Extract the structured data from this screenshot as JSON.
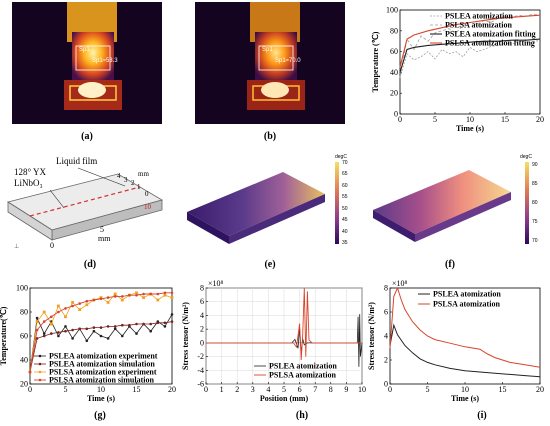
{
  "captions": {
    "a": "(a)",
    "b": "(b)",
    "c": "(c)",
    "d": "(d)",
    "e": "(e)",
    "f": "(f)",
    "g": "(g)",
    "h": "(h)",
    "i": "(i)"
  },
  "thermal": {
    "a": {
      "label": "Sp1",
      "value": "Sp1≈53.3"
    },
    "b": {
      "label": "Sp1",
      "value": "Sp1≈70.0"
    }
  },
  "colors": {
    "black": "#222222",
    "red": "#d9452b",
    "orange": "#f0a020",
    "darkred": "#7a1e1e",
    "gray": "#9e9e9e"
  },
  "chart_c": {
    "type": "line",
    "ylabel": "Temperature (℃)",
    "xlabel": "Time (s)",
    "xlim": [
      0,
      20
    ],
    "ylim": [
      0,
      100
    ],
    "xticks": [
      "0",
      "5",
      "10",
      "15",
      "20"
    ],
    "yticks": [
      "0",
      "20",
      "40",
      "60",
      "80",
      "100"
    ],
    "legend": [
      "PSLEA  atomization",
      "PSLSA atomization",
      "PSLEA atomization fitting",
      "PSLSA atomization fitting"
    ],
    "series": [
      {
        "name": "PSLEA  atomization",
        "x": [
          0,
          1,
          2,
          3,
          4,
          5,
          6,
          7,
          8,
          9,
          10,
          11,
          12,
          13,
          14,
          15,
          16,
          17,
          18,
          19,
          20
        ],
        "y": [
          35,
          58,
          52,
          55,
          60,
          53,
          62,
          58,
          60,
          55,
          64,
          60,
          62,
          65,
          66,
          68,
          67,
          70,
          69,
          68,
          72
        ]
      },
      {
        "name": "PSLSA atomization",
        "x": [
          0,
          1,
          2,
          3,
          4,
          5,
          6,
          7,
          8,
          9,
          10,
          11,
          12,
          13,
          14,
          15,
          16,
          17,
          18,
          19,
          20
        ],
        "y": [
          35,
          72,
          62,
          75,
          70,
          78,
          80,
          82,
          78,
          85,
          88,
          86,
          90,
          88,
          92,
          94,
          93,
          95,
          94,
          96,
          95
        ]
      },
      {
        "name": "PSLEA atomization fitting",
        "x": [
          0,
          1,
          2,
          4,
          6,
          8,
          10,
          12,
          14,
          16,
          18,
          20
        ],
        "y": [
          40,
          62,
          64,
          66,
          67,
          68,
          69,
          70,
          70,
          71,
          71,
          72
        ]
      },
      {
        "name": "PSLSA atomization fitting",
        "x": [
          0,
          1,
          2,
          4,
          6,
          8,
          10,
          12,
          14,
          16,
          18,
          20
        ],
        "y": [
          45,
          72,
          76,
          80,
          83,
          86,
          88,
          90,
          92,
          93,
          94,
          95
        ]
      }
    ]
  },
  "model_d": {
    "substrate": "128° YX",
    "substrate2": "LiNbO₃",
    "film": "Liquid film",
    "dims": [
      "4",
      "3",
      "2",
      "1",
      "0"
    ],
    "mm": "mm",
    "ten": "10",
    "five": "5",
    "five_mm": "mm",
    "zero": "0"
  },
  "colorbar_e": {
    "unit": "degC",
    "ticks": [
      "70",
      "65",
      "60",
      "55",
      "50",
      "45",
      "40",
      "35"
    ]
  },
  "colorbar_f": {
    "unit": "degC",
    "ticks": [
      "90",
      "85",
      "80",
      "75",
      "70"
    ]
  },
  "chart_g": {
    "type": "line",
    "ylabel": "Temperature(℃)",
    "xlabel": "Time (s)",
    "xlim": [
      0,
      20
    ],
    "ylim": [
      20,
      100
    ],
    "xticks": [
      "0",
      "5",
      "10",
      "15",
      "20"
    ],
    "yticks": [
      "20",
      "40",
      "60",
      "80",
      "100"
    ],
    "legend": [
      "PSLEA atomization experiment",
      "PSLEA atomization simulation",
      "PSLSA atomization experiment",
      "PSLSA atomization simulation"
    ],
    "series": [
      {
        "name": "PSLEA atomization experiment",
        "x": [
          0,
          1,
          2,
          3,
          4,
          5,
          6,
          7,
          8,
          9,
          10,
          11,
          12,
          13,
          14,
          15,
          16,
          17,
          18,
          19,
          20
        ],
        "y": [
          30,
          75,
          62,
          72,
          60,
          68,
          58,
          66,
          56,
          64,
          60,
          58,
          66,
          60,
          68,
          62,
          70,
          64,
          72,
          68,
          78
        ]
      },
      {
        "name": "PSLEA atomization simulation",
        "x": [
          0,
          1,
          2,
          3,
          4,
          5,
          6,
          7,
          8,
          9,
          10,
          11,
          12,
          13,
          14,
          15,
          16,
          17,
          18,
          19,
          20
        ],
        "y": [
          30,
          58,
          60,
          62,
          63,
          64,
          65,
          66,
          66,
          67,
          67,
          68,
          68,
          69,
          69,
          70,
          70,
          70,
          71,
          71,
          72
        ]
      },
      {
        "name": "PSLSA atomization experiment",
        "x": [
          0,
          1,
          2,
          3,
          4,
          5,
          6,
          7,
          8,
          9,
          10,
          11,
          12,
          13,
          14,
          15,
          16,
          17,
          18,
          19,
          20
        ],
        "y": [
          30,
          72,
          80,
          70,
          85,
          76,
          88,
          82,
          86,
          90,
          92,
          88,
          95,
          90,
          94,
          96,
          92,
          95,
          90,
          94,
          92
        ]
      },
      {
        "name": "PSLSA atomization simulation",
        "x": [
          0,
          1,
          2,
          3,
          4,
          5,
          6,
          7,
          8,
          9,
          10,
          11,
          12,
          13,
          14,
          15,
          16,
          17,
          18,
          19,
          20
        ],
        "y": [
          30,
          65,
          72,
          76,
          80,
          83,
          85,
          87,
          89,
          90,
          91,
          92,
          93,
          93,
          94,
          94,
          95,
          95,
          95,
          96,
          96
        ]
      }
    ]
  },
  "chart_h": {
    "type": "line",
    "ylabel": "Stress tensor (N/m²)",
    "xlabel": "Position (mm)",
    "exponent": "×10⁸",
    "xlim": [
      0,
      10
    ],
    "ylim": [
      -6,
      8
    ],
    "xticks": [
      "0",
      "1",
      "2",
      "3",
      "4",
      "5",
      "6",
      "7",
      "8",
      "9",
      "10"
    ],
    "yticks": [
      "-6",
      "-4",
      "-2",
      "0",
      "2",
      "4",
      "6",
      "8"
    ],
    "legend": [
      "PSLEA atomization",
      "PSLSA atomization"
    ],
    "series": [
      {
        "name": "PSLEA atomization",
        "x": [
          0,
          5.5,
          5.7,
          5.9,
          6.0,
          6.1,
          6.2,
          6.3,
          6.5,
          9.7,
          9.75,
          9.8,
          9.85,
          9.9,
          10
        ],
        "y": [
          0,
          0,
          0.5,
          -0.8,
          2.2,
          -1.5,
          0.6,
          -0.3,
          0,
          0,
          3.8,
          -3.5,
          4.2,
          -2,
          0
        ]
      },
      {
        "name": "PSLSA atomization",
        "x": [
          0,
          5.6,
          5.8,
          6.0,
          6.1,
          6.2,
          6.3,
          6.4,
          6.5,
          6.6,
          6.8,
          10
        ],
        "y": [
          0,
          0,
          -0.6,
          2.8,
          -2.5,
          1.2,
          8,
          -2.0,
          7.5,
          0.4,
          0,
          0
        ]
      }
    ]
  },
  "chart_i": {
    "type": "line",
    "ylabel": "Stress tensor (N/m²)",
    "xlabel": "Time (s)",
    "exponent": "×10⁸",
    "xlim": [
      0,
      20
    ],
    "ylim": [
      0,
      8
    ],
    "xticks": [
      "0",
      "5",
      "10",
      "15",
      "20"
    ],
    "yticks": [
      "0",
      "2",
      "4",
      "6",
      "8"
    ],
    "legend": [
      "PSLEA atomization",
      "PSLSA atomization"
    ],
    "series": [
      {
        "name": "PSLEA atomization",
        "x": [
          0,
          0.5,
          1,
          2,
          3,
          4,
          5,
          6,
          8,
          10,
          12,
          14,
          16,
          18,
          20
        ],
        "y": [
          3.2,
          4.9,
          4.1,
          3.2,
          2.6,
          2.1,
          1.8,
          1.6,
          1.3,
          1.1,
          1.0,
          0.9,
          0.8,
          0.7,
          0.6
        ]
      },
      {
        "name": "PSLSA atomization",
        "x": [
          0,
          0.5,
          1,
          1.5,
          2,
          3,
          4,
          5,
          6,
          8,
          10,
          12,
          13,
          14,
          16,
          18,
          20
        ],
        "y": [
          3.0,
          7.3,
          8.0,
          7.0,
          6.2,
          5.2,
          4.5,
          4.0,
          3.7,
          3.4,
          3.1,
          2.9,
          2.5,
          2.2,
          1.8,
          1.6,
          1.4
        ]
      }
    ]
  }
}
